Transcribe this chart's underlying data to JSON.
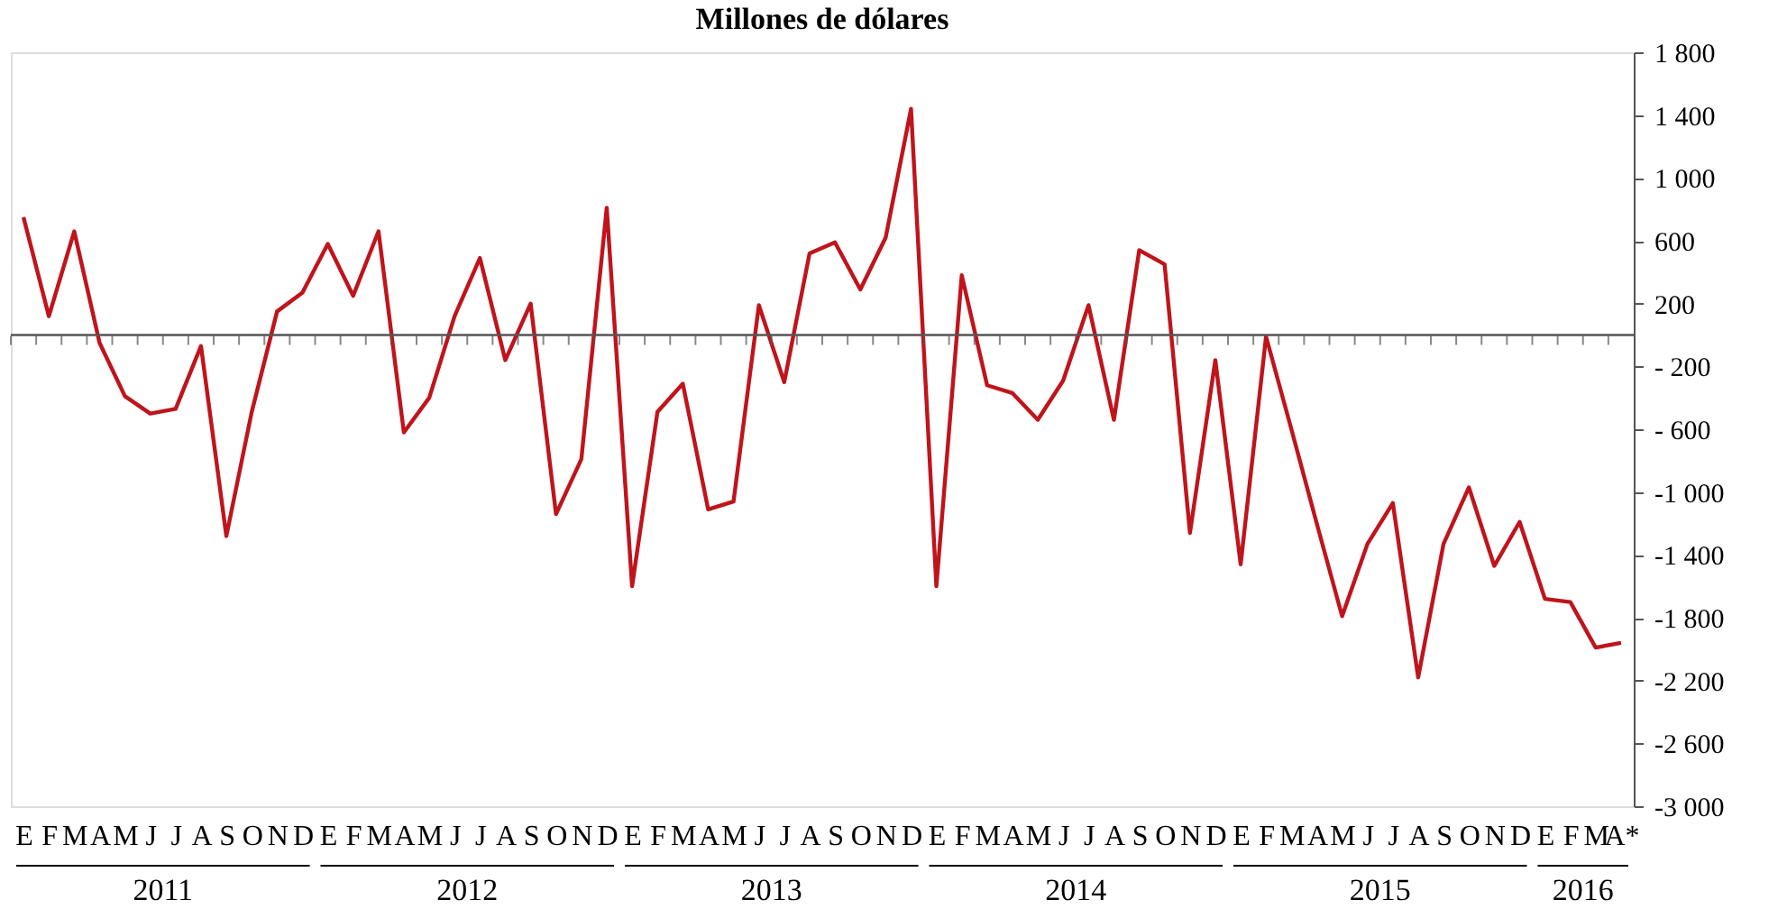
{
  "chart_data": {
    "type": "line",
    "title": "Millones de dólares",
    "categories": [
      "E",
      "F",
      "M",
      "A",
      "M",
      "J",
      "J",
      "A",
      "S",
      "O",
      "N",
      "D",
      "E",
      "F",
      "M",
      "A",
      "M",
      "J",
      "J",
      "A",
      "S",
      "O",
      "N",
      "D",
      "E",
      "F",
      "M",
      "A",
      "M",
      "J",
      "J",
      "A",
      "S",
      "O",
      "N",
      "D",
      "E",
      "F",
      "M",
      "A",
      "M",
      "J",
      "J",
      "A",
      "S",
      "O",
      "N",
      "D",
      "E",
      "F",
      "M",
      "A",
      "M",
      "J",
      "J",
      "A",
      "S",
      "O",
      "N",
      "D",
      "E",
      "F",
      "M",
      "A*"
    ],
    "series": [
      {
        "color": "#c0141c",
        "values": [
          750,
          120,
          660,
          -50,
          -390,
          -500,
          -470,
          -70,
          -1280,
          -490,
          150,
          270,
          580,
          250,
          660,
          -620,
          -400,
          120,
          490,
          -160,
          200,
          -1140,
          -790,
          810,
          -1600,
          -490,
          -310,
          -1110,
          -1060,
          190,
          -300,
          520,
          590,
          290,
          620,
          1440,
          -1600,
          380,
          -320,
          -370,
          -540,
          -290,
          190,
          -540,
          540,
          450,
          -1260,
          -160,
          -1460,
          -10,
          -600,
          -1200,
          -1790,
          -1330,
          -1070,
          -2180,
          -1330,
          -970,
          -1470,
          -1190,
          -1680,
          -1700,
          -1990,
          -1960
        ]
      }
    ],
    "ylim": [
      -3000,
      1800
    ],
    "yticks": [
      {
        "value": 1800,
        "label": "1 800"
      },
      {
        "value": 1400,
        "label": "1 400"
      },
      {
        "value": 1000,
        "label": "1 000"
      },
      {
        "value": 600,
        "label": "600"
      },
      {
        "value": 200,
        "label": "200"
      },
      {
        "value": -200,
        "label": "- 200"
      },
      {
        "value": -600,
        "label": "- 600"
      },
      {
        "value": -1000,
        "label": "-1 000"
      },
      {
        "value": -1400,
        "label": "-1 400"
      },
      {
        "value": -1800,
        "label": "-1 800"
      },
      {
        "value": -2200,
        "label": "-2 200"
      },
      {
        "value": -2600,
        "label": "-2 600"
      },
      {
        "value": -3000,
        "label": "-3 000"
      }
    ],
    "ref_lines": [
      {
        "axis": "y",
        "value": 0,
        "color": "#555555"
      }
    ],
    "annotations": [
      "2011",
      "2012",
      "2013",
      "2014",
      "2015",
      "2016"
    ],
    "grid": false,
    "marker": "none",
    "line_style": "solid"
  }
}
